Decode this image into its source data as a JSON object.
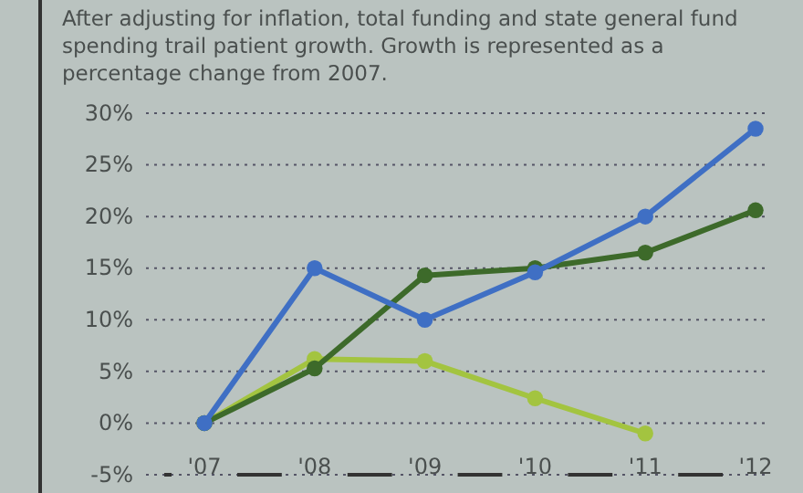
{
  "chart_data": {
    "type": "line",
    "subtitle": "After adjusting for inflation, total funding and state general fund spending trail patient growth. Growth is represented as a percentage change from 2007.",
    "categories": [
      "'07",
      "'08",
      "'09",
      "'10",
      "'11",
      "'12"
    ],
    "series": [
      {
        "color": "#3f6fc4",
        "values": [
          0,
          15,
          10,
          14.6,
          20,
          28.5
        ]
      },
      {
        "color": "#3d6a2a",
        "values": [
          0,
          5.3,
          14.3,
          15,
          16.5,
          20.6
        ]
      },
      {
        "color": "#a3c440",
        "values": [
          0,
          6.2,
          6,
          2.4,
          -1,
          null
        ]
      }
    ],
    "ylim": [
      -5,
      30
    ],
    "yticks": [
      {
        "value": -5,
        "label": "-5%"
      },
      {
        "value": 0,
        "label": "0%"
      },
      {
        "value": 5,
        "label": "5%"
      },
      {
        "value": 10,
        "label": "10%"
      },
      {
        "value": 15,
        "label": "15%"
      },
      {
        "value": 20,
        "label": "20%"
      },
      {
        "value": 25,
        "label": "25%"
      },
      {
        "value": 30,
        "label": "30%"
      }
    ],
    "grid": "y",
    "marker": "circle",
    "line_style": "solid"
  }
}
